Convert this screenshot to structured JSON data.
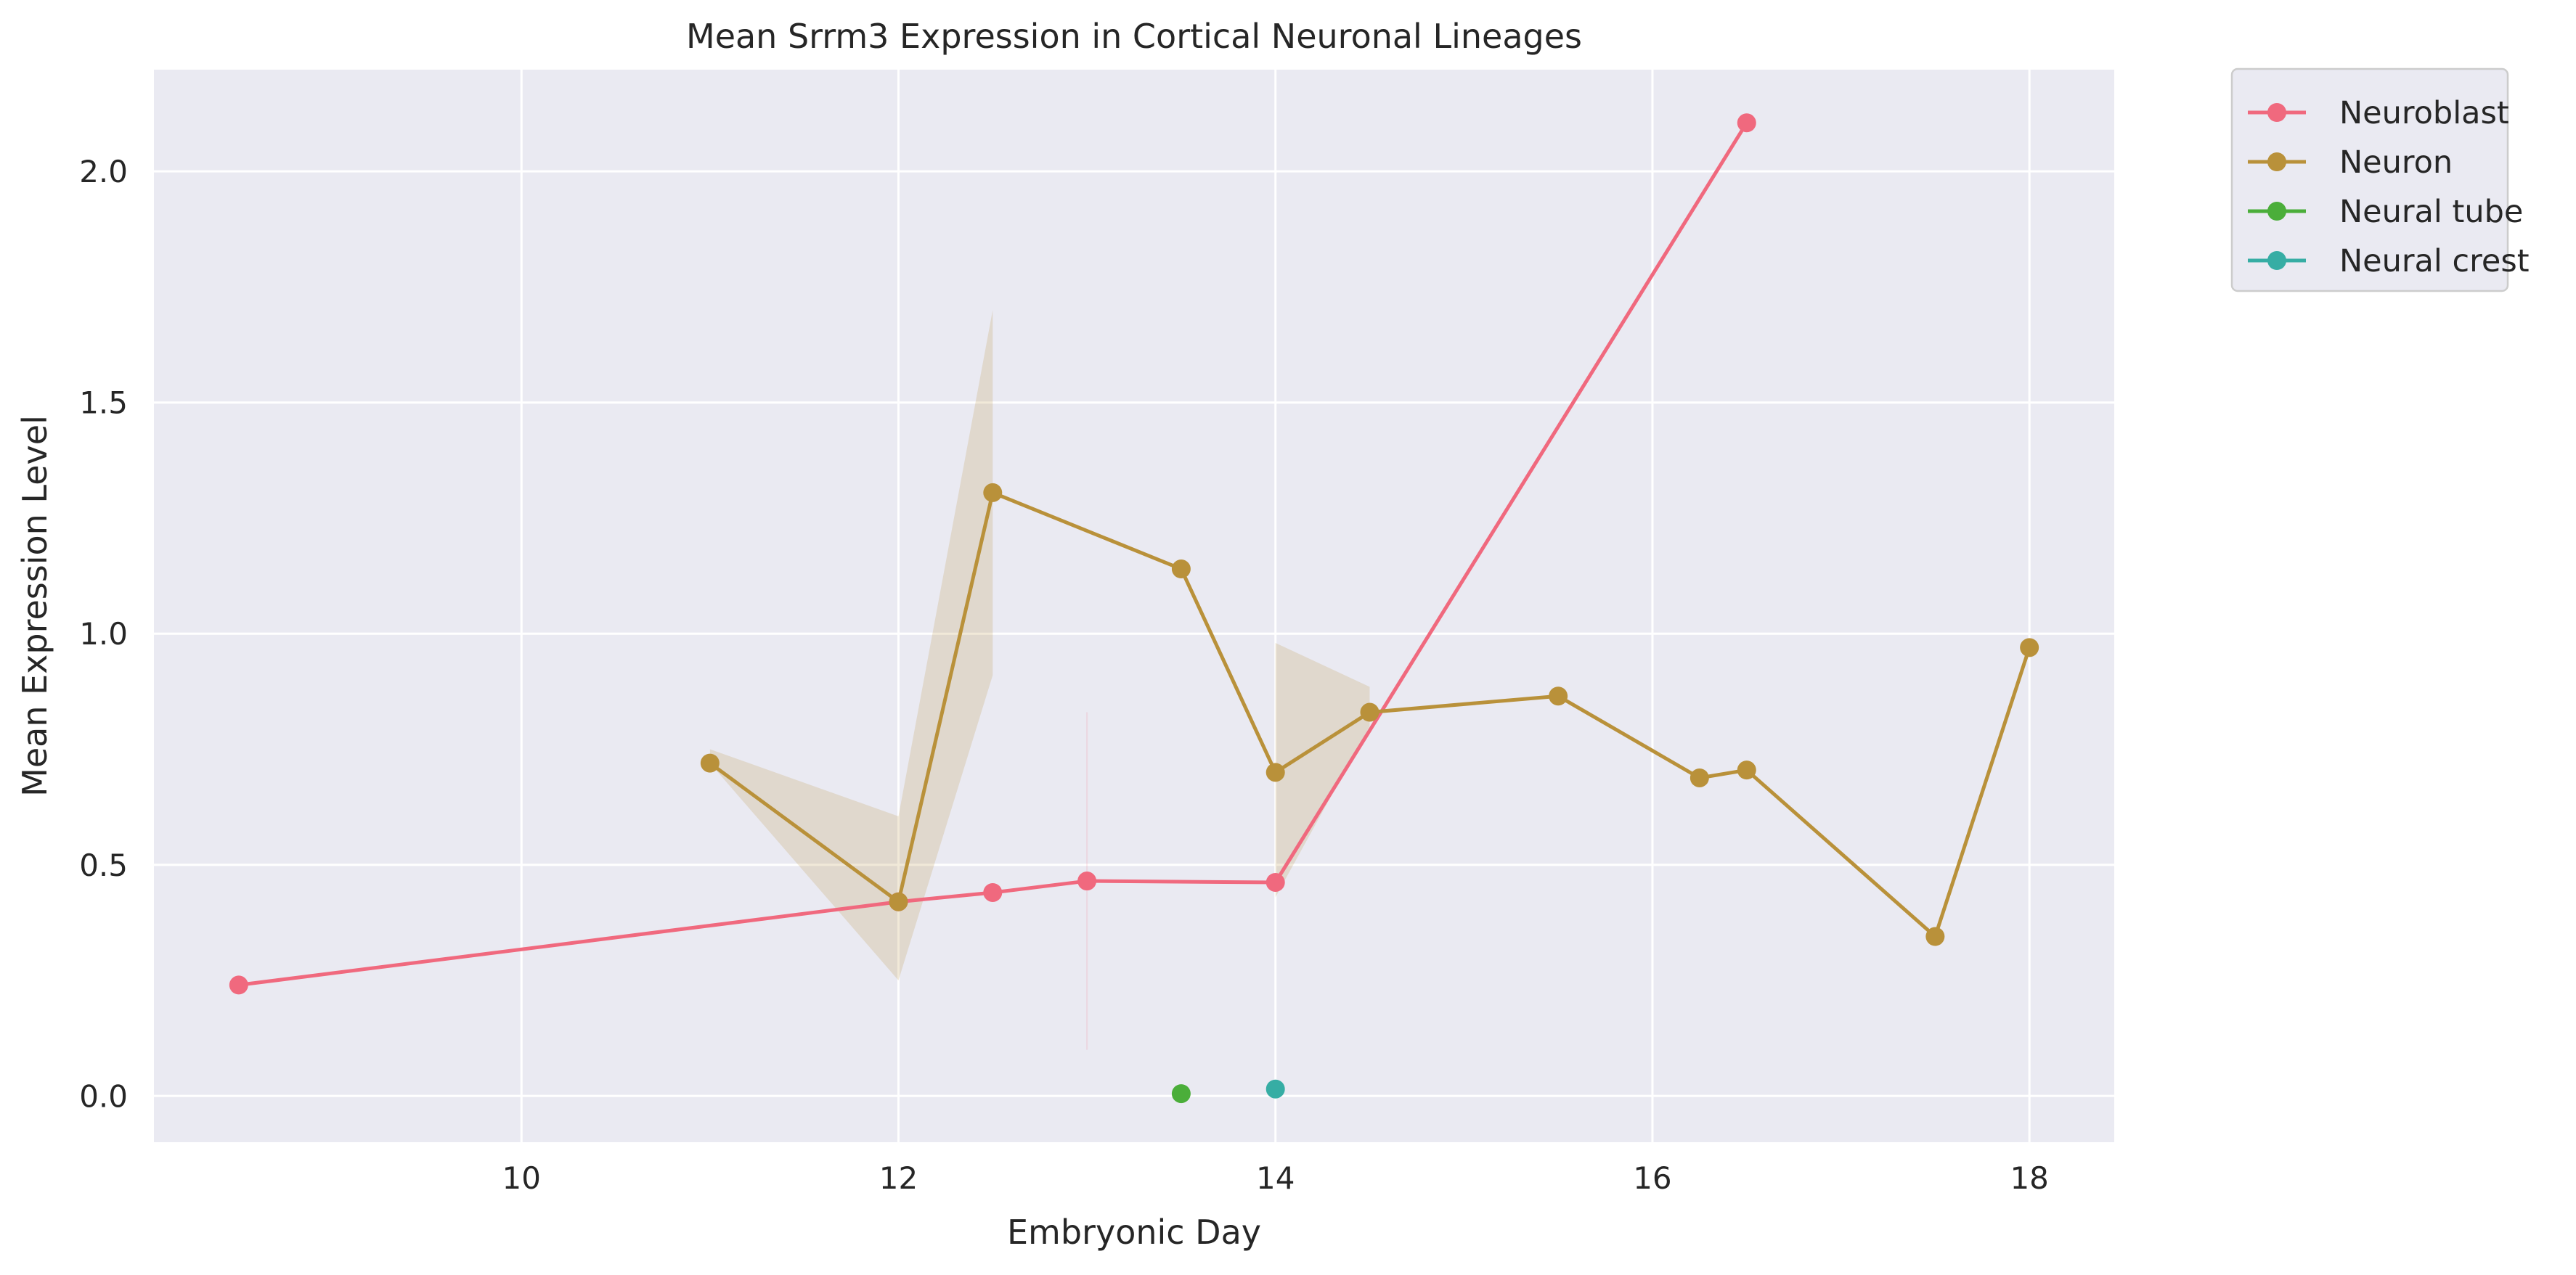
{
  "chart_data": {
    "type": "line",
    "title": "Mean Srrm3 Expression in Cortical Neuronal Lineages",
    "xlabel": "Embryonic Day",
    "ylabel": "Mean Expression Level",
    "xlim": [
      8.05,
      18.45
    ],
    "ylim": [
      -0.1,
      2.22
    ],
    "x_ticks": [
      10,
      12,
      14,
      16,
      18
    ],
    "x_tick_labels": [
      "10",
      "12",
      "14",
      "16",
      "18"
    ],
    "y_ticks": [
      0.0,
      0.5,
      1.0,
      1.5,
      2.0
    ],
    "y_tick_labels": [
      "0.0",
      "0.5",
      "1.0",
      "1.5",
      "2.0"
    ],
    "grid": true,
    "legend_position": "outside-top-right",
    "series": [
      {
        "name": "Neuroblast",
        "color": "#f0697e",
        "x": [
          8.5,
          12.0,
          12.5,
          13.0,
          14.0,
          16.5
        ],
        "y": [
          0.24,
          0.42,
          0.44,
          0.465,
          0.462,
          2.105
        ],
        "ci": [
          {
            "x": 13.0,
            "low": 0.1,
            "high": 0.83
          }
        ]
      },
      {
        "name": "Neuron",
        "color": "#b9913a",
        "x": [
          11.0,
          12.0,
          12.5,
          13.5,
          14.0,
          14.5,
          15.5,
          16.25,
          16.5,
          17.5,
          18.0
        ],
        "y": [
          0.72,
          0.42,
          1.305,
          1.14,
          0.7,
          0.83,
          0.865,
          0.688,
          0.705,
          0.345,
          0.97
        ],
        "ci_band": [
          {
            "x": 11.0,
            "low": 0.72,
            "high": 0.75
          },
          {
            "x": 12.0,
            "low": 0.25,
            "high": 0.605
          },
          {
            "x": 12.5,
            "low": 0.91,
            "high": 1.7
          }
        ],
        "ci_band_2": [
          {
            "x": 14.0,
            "low": 0.43,
            "high": 0.98
          },
          {
            "x": 14.5,
            "low": 0.8,
            "high": 0.885
          }
        ]
      },
      {
        "name": "Neural tube",
        "color": "#4bae3a",
        "x": [
          13.5
        ],
        "y": [
          0.005
        ]
      },
      {
        "name": "Neural crest",
        "color": "#36ada4",
        "x": [
          14.0
        ],
        "y": [
          0.015
        ]
      }
    ]
  }
}
